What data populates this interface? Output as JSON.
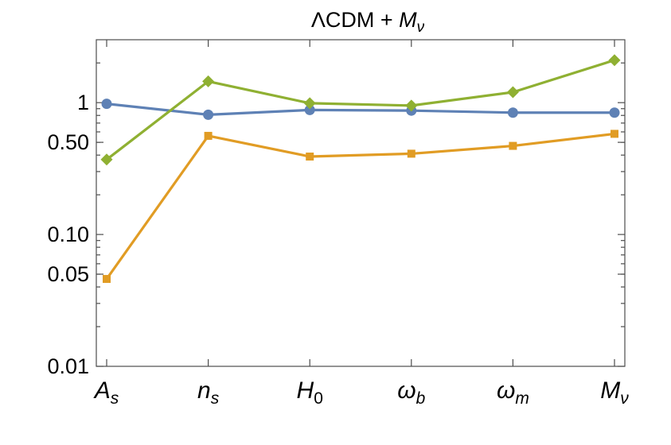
{
  "chart_data": {
    "type": "line",
    "title": "ΛCDM + M_ν",
    "title_parts": {
      "main": "ΛCDM + ",
      "var": "M",
      "sub": "ν"
    },
    "xlabel": "",
    "ylabel": "",
    "yscale": "log",
    "ylim": [
      0.01,
      3.0
    ],
    "y_ticks": [
      {
        "value": 0.01,
        "label": "0.01"
      },
      {
        "value": 0.05,
        "label": "0.05"
      },
      {
        "value": 0.1,
        "label": "0.10"
      },
      {
        "value": 0.5,
        "label": "0.50"
      },
      {
        "value": 1.0,
        "label": "1"
      }
    ],
    "categories": [
      {
        "base": "A",
        "sub": "s"
      },
      {
        "base": "n",
        "sub": "s"
      },
      {
        "base": "H",
        "sub": "0"
      },
      {
        "base": "ω",
        "sub": "b"
      },
      {
        "base": "ω",
        "sub": "m"
      },
      {
        "base": "M",
        "sub": "ν"
      }
    ],
    "grid": false,
    "legend": "none",
    "series": [
      {
        "name": "blue-circles",
        "color": "#5e81b5",
        "marker": "circle",
        "values": [
          0.98,
          0.81,
          0.88,
          0.87,
          0.84,
          0.84
        ]
      },
      {
        "name": "orange-squares",
        "color": "#e19c24",
        "marker": "square",
        "values": [
          0.046,
          0.56,
          0.39,
          0.41,
          0.47,
          0.58
        ]
      },
      {
        "name": "green-diamonds",
        "color": "#8fb032",
        "marker": "diamond",
        "values": [
          0.37,
          1.45,
          0.99,
          0.95,
          1.2,
          2.1
        ]
      }
    ]
  }
}
